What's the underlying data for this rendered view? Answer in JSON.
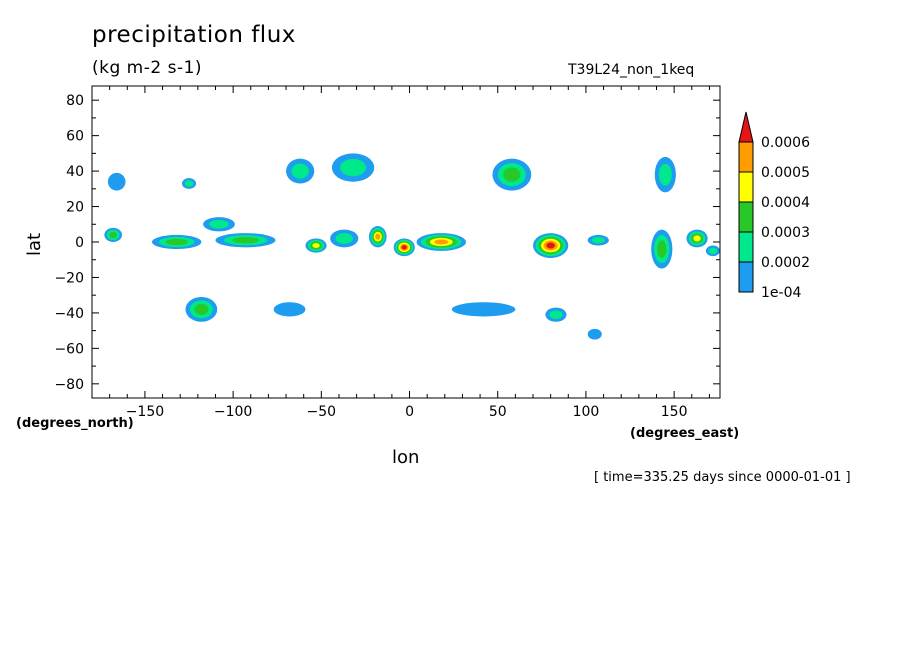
{
  "title": "precipitation flux",
  "units": "(kg m-2 s-1)",
  "run_id": "T39L24_non_1keq",
  "timestamp": "[ time=335.25 days since 0000-01-01 ]",
  "chart_data": {
    "type": "heatmap",
    "title": "precipitation flux",
    "subtitle": "(kg m-2 s-1)",
    "xlabel": "lon",
    "ylabel": "lat",
    "x_units": "(degrees_east)",
    "y_units": "(degrees_north)",
    "xlim": [
      -180,
      176
    ],
    "ylim": [
      -88,
      88
    ],
    "x_ticks": [
      -150,
      -100,
      -50,
      0,
      50,
      100,
      150
    ],
    "y_ticks": [
      -80,
      -60,
      -40,
      -20,
      0,
      20,
      40,
      60,
      80
    ],
    "levels": [
      0.0001,
      0.0002,
      0.0003,
      0.0004,
      0.0005,
      0.0006
    ],
    "colorbar_labels": [
      "1e-04",
      "0.0002",
      "0.0003",
      "0.0004",
      "0.0005",
      "0.0006"
    ],
    "colors": [
      "#1e9cf0",
      "#00e88c",
      "#28c828",
      "#ffff00",
      "#ff9c00",
      "#e61414"
    ],
    "colorbar_extend": "max",
    "features": [
      {
        "lon": -168,
        "lat": 4,
        "rx": 5,
        "ry": 4,
        "level": 3
      },
      {
        "lon": -166,
        "lat": 34,
        "rx": 5,
        "ry": 5,
        "level": 1
      },
      {
        "lon": -132,
        "lat": 0,
        "rx": 14,
        "ry": 4,
        "level": 3
      },
      {
        "lon": -125,
        "lat": 33,
        "rx": 4,
        "ry": 3,
        "level": 2
      },
      {
        "lon": -118,
        "lat": -38,
        "rx": 9,
        "ry": 7,
        "level": 3
      },
      {
        "lon": -108,
        "lat": 10,
        "rx": 9,
        "ry": 4,
        "level": 2
      },
      {
        "lon": -93,
        "lat": 1,
        "rx": 17,
        "ry": 4,
        "level": 3
      },
      {
        "lon": -68,
        "lat": -38,
        "rx": 9,
        "ry": 4,
        "level": 1
      },
      {
        "lon": -62,
        "lat": 40,
        "rx": 8,
        "ry": 7,
        "level": 2
      },
      {
        "lon": -53,
        "lat": -2,
        "rx": 6,
        "ry": 4,
        "level": 4
      },
      {
        "lon": -37,
        "lat": 2,
        "rx": 8,
        "ry": 5,
        "level": 2
      },
      {
        "lon": -32,
        "lat": 42,
        "rx": 12,
        "ry": 8,
        "level": 2
      },
      {
        "lon": -18,
        "lat": 3,
        "rx": 5,
        "ry": 6,
        "level": 5
      },
      {
        "lon": -3,
        "lat": -3,
        "rx": 6,
        "ry": 5,
        "level": 6
      },
      {
        "lon": 18,
        "lat": 0,
        "rx": 14,
        "ry": 5,
        "level": 5
      },
      {
        "lon": 42,
        "lat": -38,
        "rx": 18,
        "ry": 4,
        "level": 1
      },
      {
        "lon": 58,
        "lat": 38,
        "rx": 11,
        "ry": 9,
        "level": 3
      },
      {
        "lon": 80,
        "lat": -2,
        "rx": 10,
        "ry": 7,
        "level": 6
      },
      {
        "lon": 83,
        "lat": -41,
        "rx": 6,
        "ry": 4,
        "level": 2
      },
      {
        "lon": 105,
        "lat": -52,
        "rx": 4,
        "ry": 3,
        "level": 1
      },
      {
        "lon": 107,
        "lat": 1,
        "rx": 6,
        "ry": 3,
        "level": 2
      },
      {
        "lon": 145,
        "lat": 38,
        "rx": 6,
        "ry": 10,
        "level": 2
      },
      {
        "lon": 143,
        "lat": -4,
        "rx": 6,
        "ry": 11,
        "level": 3
      },
      {
        "lon": 163,
        "lat": 2,
        "rx": 6,
        "ry": 5,
        "level": 4
      },
      {
        "lon": 172,
        "lat": -5,
        "rx": 4,
        "ry": 3,
        "level": 2
      }
    ]
  }
}
